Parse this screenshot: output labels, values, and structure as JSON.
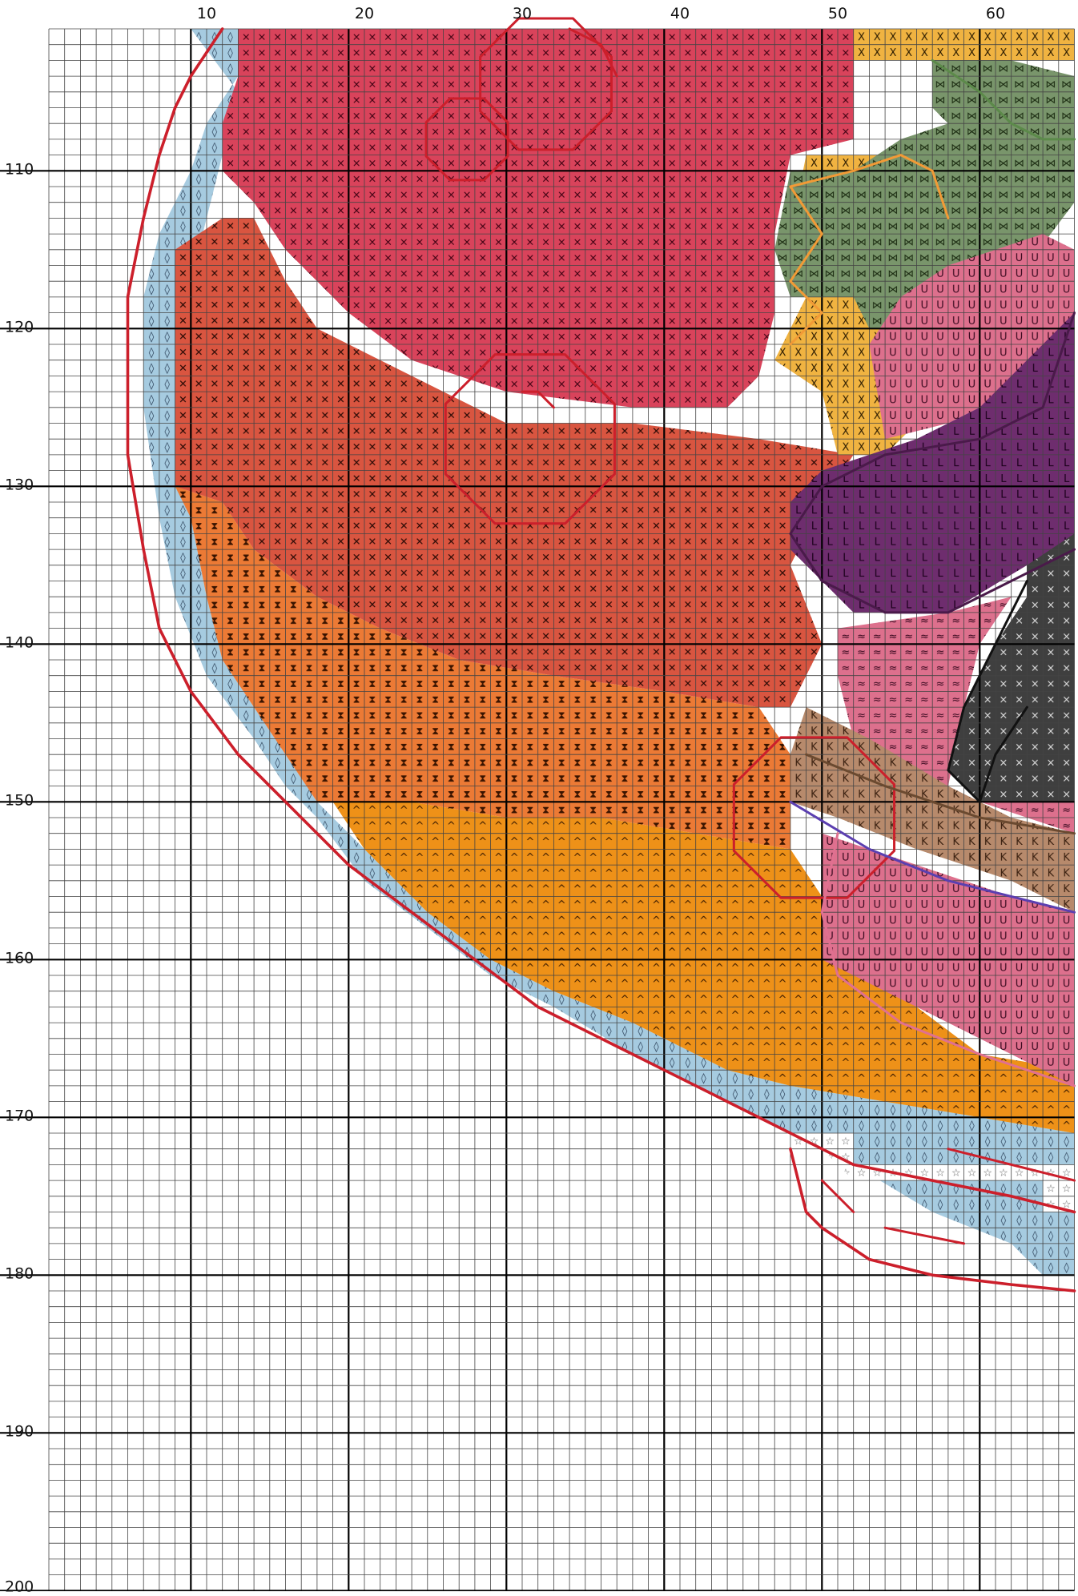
{
  "chart": {
    "type": "cross-stitch pattern grid",
    "columns_visible": [
      1,
      65
    ],
    "rows_visible": [
      101,
      200
    ],
    "column_labels": [
      "10",
      "20",
      "30",
      "40",
      "50",
      "60"
    ],
    "row_labels": [
      "110",
      "120",
      "130",
      "140",
      "150",
      "160",
      "170",
      "180",
      "190",
      "200"
    ]
  },
  "colors": {
    "background": "#ffffff",
    "grid_minor": "#444444",
    "grid_major": "#000000",
    "outline_red": "#cc1f2b",
    "magenta": "#d9435b",
    "red_orange": "#d95540",
    "orange": "#ec7a35",
    "amber": "#ee9118",
    "light_blue": "#a6cbe0",
    "mustard": "#f0b341",
    "green": "#79956b",
    "pink": "#dd708d",
    "purple": "#6e2d6e",
    "tan": "#b78a6c",
    "dark_grey": "#3f3f3f",
    "white_star": "#ffffff"
  },
  "legend_symbols": [
    {
      "symbol": "×",
      "color": "magenta"
    },
    {
      "symbol": "▦",
      "color": "magenta"
    },
    {
      "symbol": "✕",
      "color": "red_orange"
    },
    {
      "symbol": "⧗",
      "color": "orange"
    },
    {
      "symbol": "^",
      "color": "amber"
    },
    {
      "symbol": "◊",
      "color": "light_blue"
    },
    {
      "symbol": "X",
      "color": "mustard"
    },
    {
      "symbol": "⋈",
      "color": "green"
    },
    {
      "symbol": "U",
      "color": "pink"
    },
    {
      "symbol": "L",
      "color": "purple"
    },
    {
      "symbol": "≈",
      "color": "pink"
    },
    {
      "symbol": "K",
      "color": "tan"
    },
    {
      "symbol": "×",
      "color": "dark_grey"
    },
    {
      "symbol": "☆",
      "color": "white_star"
    }
  ]
}
